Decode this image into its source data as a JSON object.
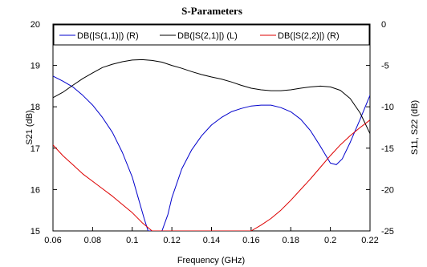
{
  "chart_data": {
    "type": "line",
    "title": "S-Parameters",
    "xlabel": "Frequency (GHz)",
    "ylabel_left": "S21 (dB)",
    "ylabel_right": "S11, S22 (dB)",
    "xlim": [
      0.06,
      0.22
    ],
    "ylim_left": [
      15,
      20
    ],
    "ylim_right": [
      -25,
      0
    ],
    "x_ticks": [
      "0.06",
      "0.08",
      "0.1",
      "0.12",
      "0.14",
      "0.16",
      "0.18",
      "0.2",
      "0.22"
    ],
    "y_left_ticks": [
      "15",
      "16",
      "17",
      "18",
      "19",
      "20"
    ],
    "y_right_ticks": [
      "-25",
      "-20",
      "-15",
      "-10",
      "-5",
      "0"
    ],
    "grid": false,
    "legend_position": "top",
    "series": [
      {
        "name": "DB(|S(1,1)|) (R)",
        "axis": "right",
        "color": "#0000cc",
        "x": [
          0.06,
          0.065,
          0.07,
          0.075,
          0.08,
          0.085,
          0.09,
          0.095,
          0.1,
          0.103,
          0.106,
          0.108,
          0.115,
          0.118,
          0.12,
          0.125,
          0.13,
          0.135,
          0.14,
          0.145,
          0.15,
          0.155,
          0.16,
          0.165,
          0.17,
          0.175,
          0.18,
          0.185,
          0.19,
          0.195,
          0.2,
          0.203,
          0.206,
          0.21,
          0.215,
          0.22
        ],
        "y": [
          -6.3,
          -6.9,
          -7.6,
          -8.6,
          -9.8,
          -11.3,
          -13.1,
          -15.5,
          -18.5,
          -21.0,
          -23.5,
          -25.0,
          -25.0,
          -23.0,
          -21.0,
          -17.5,
          -15.2,
          -13.5,
          -12.2,
          -11.3,
          -10.6,
          -10.2,
          -9.9,
          -9.8,
          -9.8,
          -10.1,
          -10.6,
          -11.5,
          -12.9,
          -14.8,
          -16.8,
          -17.0,
          -16.3,
          -14.3,
          -11.5,
          -8.6
        ]
      },
      {
        "name": "DB(|S(2,1)|) (L)",
        "axis": "left",
        "color": "#000000",
        "x": [
          0.06,
          0.065,
          0.07,
          0.075,
          0.08,
          0.085,
          0.09,
          0.095,
          0.1,
          0.105,
          0.11,
          0.115,
          0.12,
          0.125,
          0.13,
          0.135,
          0.14,
          0.145,
          0.15,
          0.155,
          0.16,
          0.165,
          0.17,
          0.175,
          0.18,
          0.185,
          0.19,
          0.195,
          0.2,
          0.205,
          0.21,
          0.215,
          0.22
        ],
        "y": [
          18.22,
          18.35,
          18.52,
          18.68,
          18.82,
          18.95,
          19.03,
          19.09,
          19.13,
          19.14,
          19.12,
          19.08,
          19.0,
          18.93,
          18.85,
          18.78,
          18.72,
          18.67,
          18.6,
          18.52,
          18.45,
          18.41,
          18.39,
          18.39,
          18.41,
          18.45,
          18.48,
          18.5,
          18.48,
          18.4,
          18.2,
          17.85,
          17.35
        ]
      },
      {
        "name": "DB(|S(2,2)|) (R)",
        "axis": "right",
        "color": "#dd0000",
        "x": [
          0.06,
          0.065,
          0.07,
          0.075,
          0.08,
          0.085,
          0.09,
          0.095,
          0.1,
          0.105,
          0.11,
          0.16,
          0.165,
          0.17,
          0.175,
          0.18,
          0.185,
          0.19,
          0.195,
          0.2,
          0.205,
          0.21,
          0.215,
          0.22
        ],
        "y": [
          -14.6,
          -15.9,
          -17.0,
          -18.1,
          -19.0,
          -19.9,
          -20.8,
          -21.8,
          -22.8,
          -24.0,
          -25.0,
          -25.0,
          -24.3,
          -23.5,
          -22.5,
          -21.3,
          -20.0,
          -18.7,
          -17.3,
          -15.9,
          -14.6,
          -13.5,
          -12.5,
          -11.6
        ]
      }
    ]
  }
}
